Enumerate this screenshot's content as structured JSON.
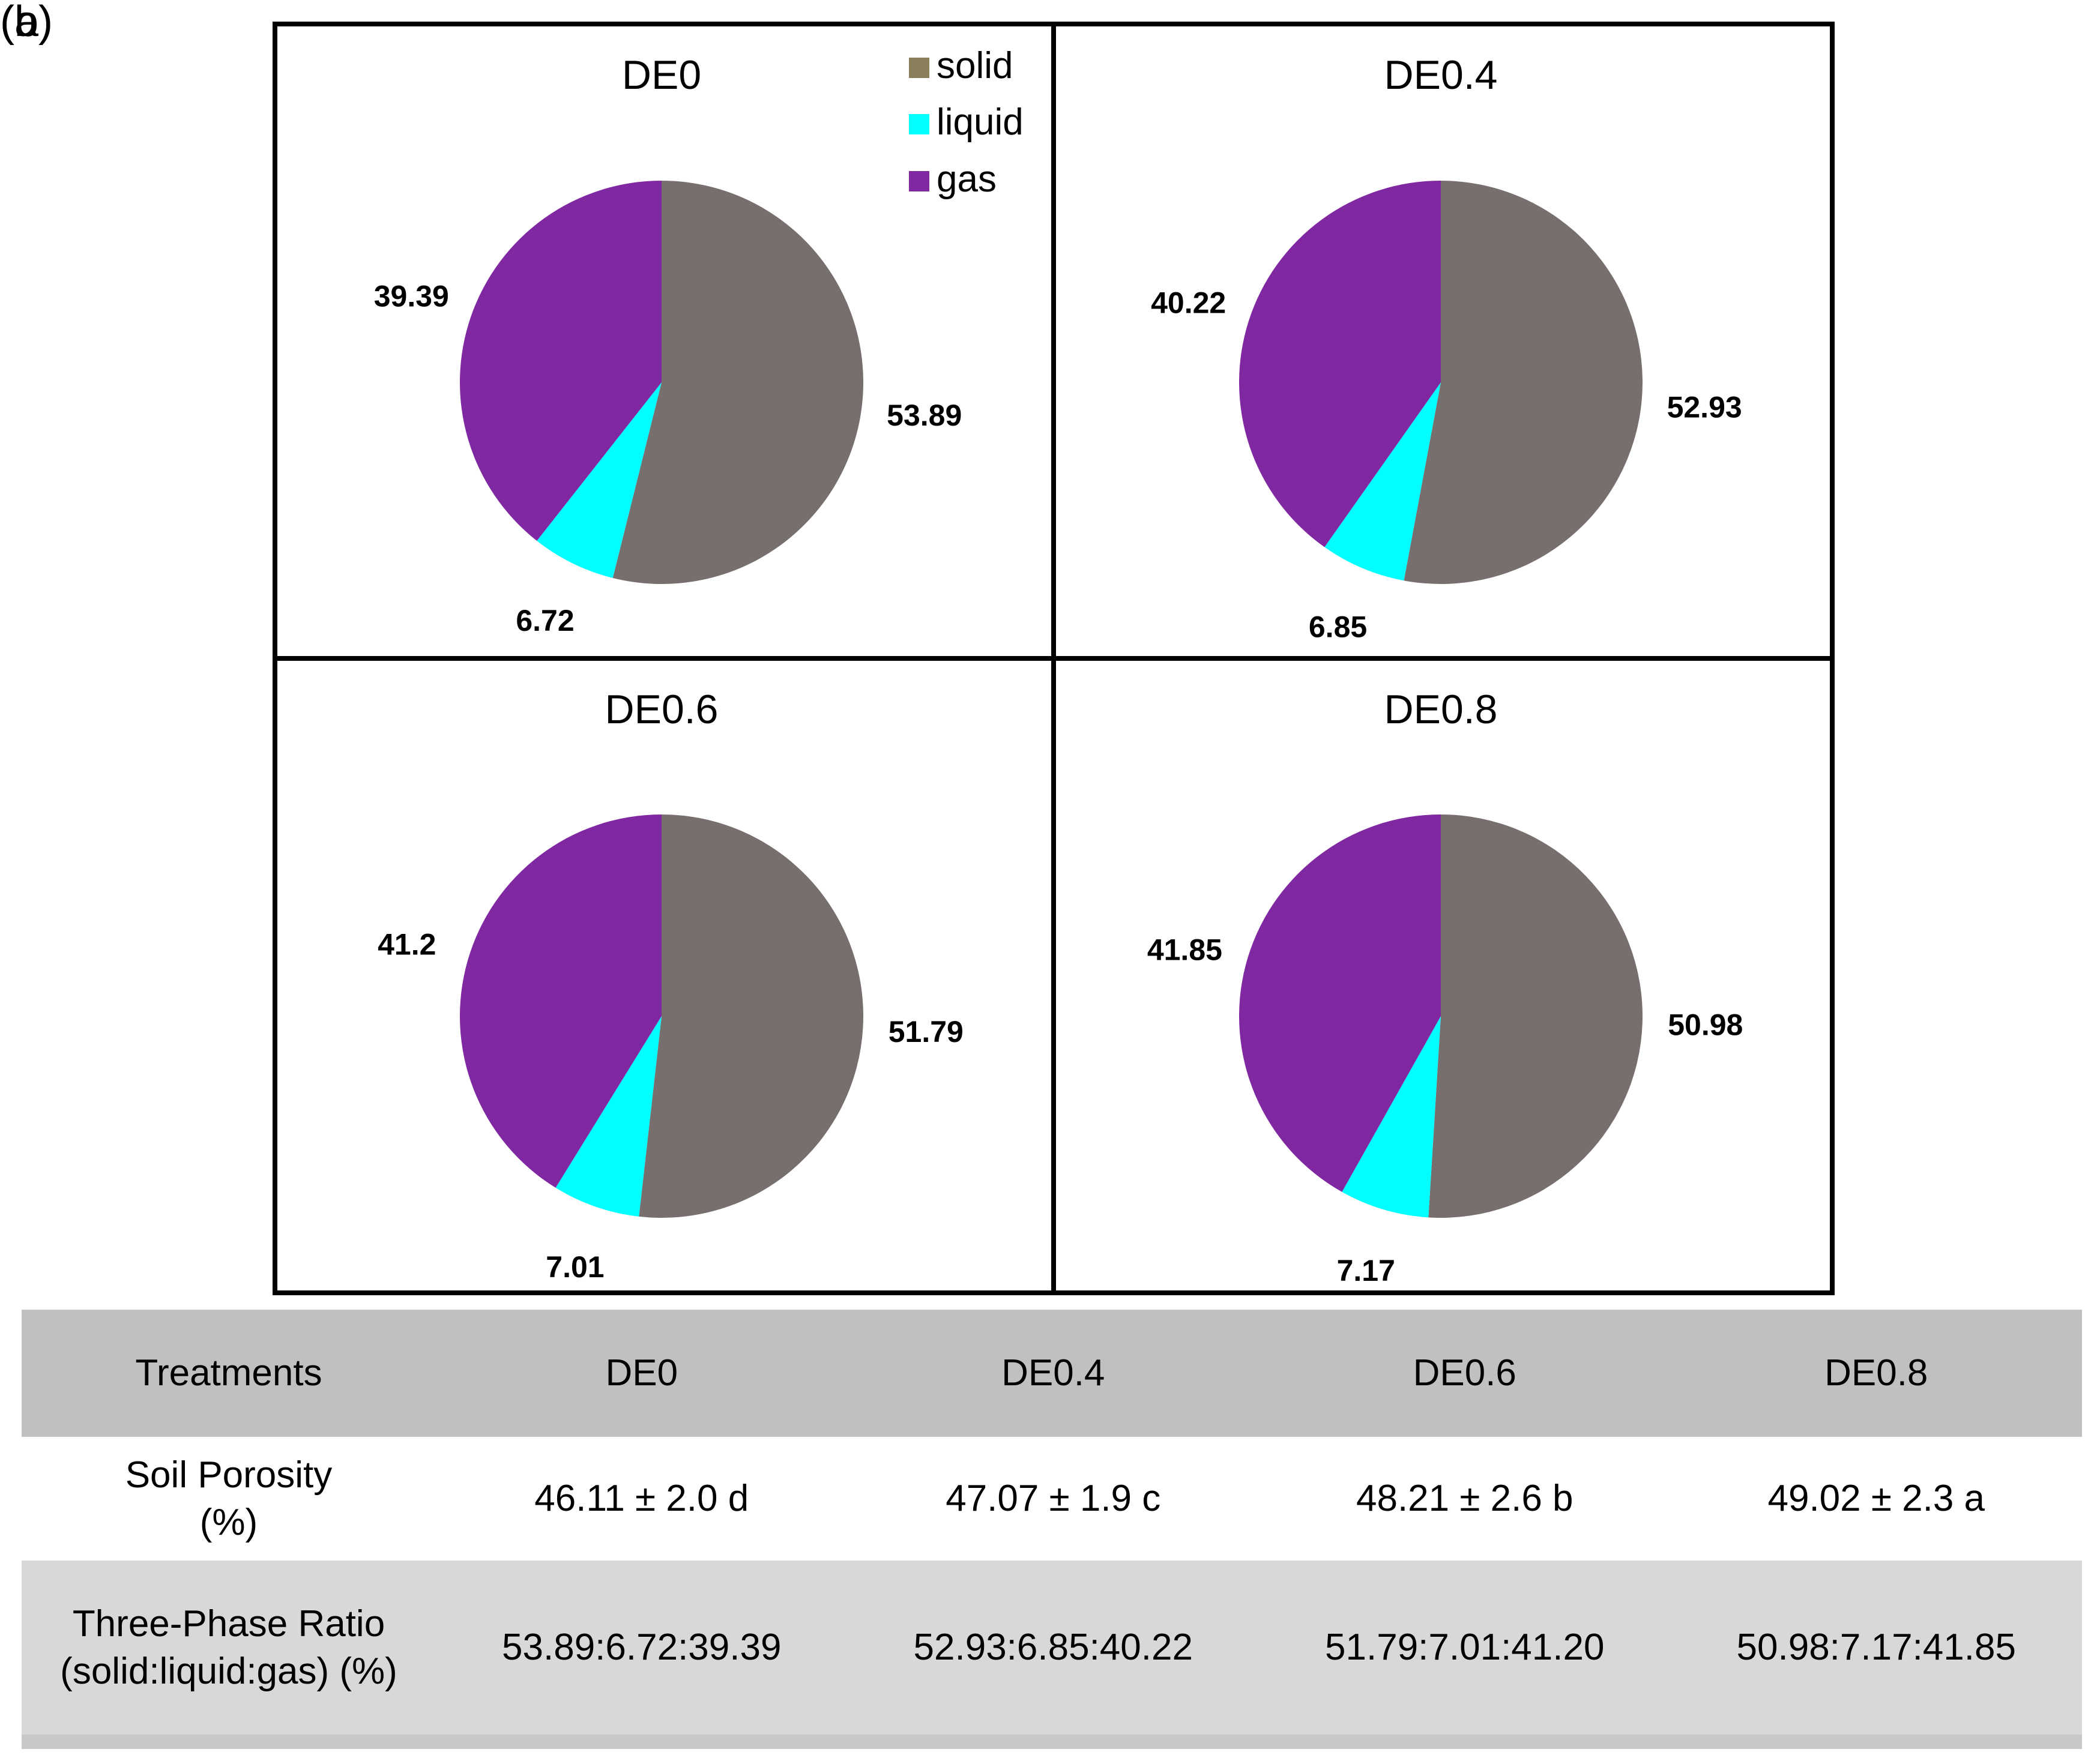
{
  "panel_labels": {
    "a": "(a)",
    "b": "(b)"
  },
  "colors": {
    "solid": "#776e6e",
    "liquid": "#00ffff",
    "gas": "#8028a2",
    "solid_legend": "#8a7f5a"
  },
  "chart_data": {
    "type": "pie",
    "legend": {
      "placement": "top-right of first panel",
      "entries": [
        "solid",
        "liquid",
        "gas"
      ]
    },
    "panels": [
      {
        "title": "DE0",
        "labels": [
          "solid",
          "liquid",
          "gas"
        ],
        "values": [
          53.89,
          6.72,
          39.39
        ],
        "value_labels": [
          "53.89",
          "6.72",
          "39.39"
        ]
      },
      {
        "title": "DE0.4",
        "labels": [
          "solid",
          "liquid",
          "gas"
        ],
        "values": [
          52.93,
          6.85,
          40.22
        ],
        "value_labels": [
          "52.93",
          "6.85",
          "40.22"
        ]
      },
      {
        "title": "DE0.6",
        "labels": [
          "solid",
          "liquid",
          "gas"
        ],
        "values": [
          51.79,
          7.01,
          41.2
        ],
        "value_labels": [
          "51.79",
          "7.01",
          "41.2"
        ]
      },
      {
        "title": "DE0.8",
        "labels": [
          "solid",
          "liquid",
          "gas"
        ],
        "values": [
          50.98,
          7.17,
          41.85
        ],
        "value_labels": [
          "50.98",
          "7.17",
          "41.85"
        ]
      }
    ]
  },
  "table": {
    "header": [
      "Treatments",
      "DE0",
      "DE0.4",
      "DE0.6",
      "DE0.8"
    ],
    "rows": [
      {
        "label_line1": "Soil Porosity",
        "label_line2": "(%)",
        "cells": [
          "46.11 ± 2.0 d",
          "47.07 ± 1.9 c",
          "48.21 ± 2.6 b",
          "49.02 ± 2.3 a"
        ]
      },
      {
        "label_line1": "Three-Phase Ratio",
        "label_line2": "(solid:liquid:gas) (%)",
        "cells": [
          "53.89:6.72:39.39",
          "52.93:6.85:40.22",
          "51.79:7.01:41.20",
          "50.98:7.17:41.85"
        ]
      }
    ]
  }
}
